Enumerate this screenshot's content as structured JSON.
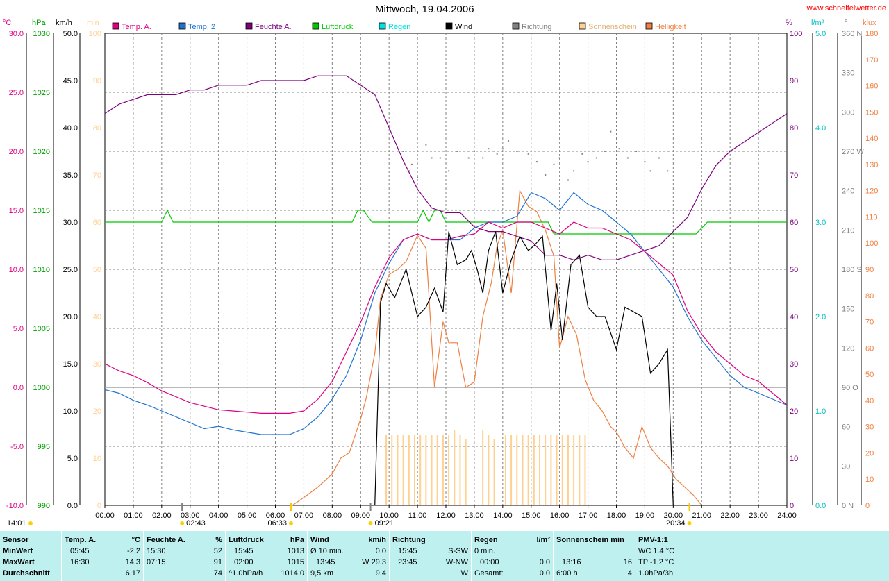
{
  "title": "Mittwoch, 19.04.2006",
  "site": "www.schneifelwetter.de",
  "legend": [
    {
      "name": "Temp. A.",
      "color": "#e0007f"
    },
    {
      "name": "Temp. 2",
      "color": "#1e73d2"
    },
    {
      "name": "Feuchte A.",
      "color": "#800080"
    },
    {
      "name": "Luftdruck",
      "color": "#00c800"
    },
    {
      "name": "Regen",
      "color": "#00e0e0"
    },
    {
      "name": "Wind",
      "color": "#000000"
    },
    {
      "name": "Richtung",
      "color": "#808080"
    },
    {
      "name": "Sonnenschein",
      "color": "#ffd090"
    },
    {
      "name": "Helligkeit",
      "color": "#f08040"
    }
  ],
  "axes": {
    "temp": {
      "unit": "°C",
      "ticks": [
        "30.0",
        "25.0",
        "20.0",
        "15.0",
        "10.0",
        "5.0",
        "0.0",
        "-5.0",
        "-10.0"
      ],
      "color": "#e0007f"
    },
    "hpa": {
      "unit": "hPa",
      "ticks": [
        "1030",
        "1025",
        "1020",
        "1015",
        "1010",
        "1005",
        "1000",
        "995",
        "990"
      ],
      "color": "#00a000"
    },
    "kmh": {
      "unit": "km/h",
      "ticks": [
        "50.0",
        "45.0",
        "40.0",
        "35.0",
        "30.0",
        "25.0",
        "20.0",
        "15.0",
        "10.0",
        "5.0",
        "0.0"
      ],
      "color": "#000000"
    },
    "min": {
      "unit": "min",
      "ticks": [
        "100",
        "90",
        "80",
        "70",
        "60",
        "50",
        "40",
        "30",
        "20",
        "10",
        "0"
      ],
      "color": "#ffd090"
    },
    "pct": {
      "unit": "%",
      "ticks": [
        "100",
        "90",
        "80",
        "70",
        "60",
        "50",
        "40",
        "30",
        "20",
        "10",
        "0"
      ],
      "color": "#800080"
    },
    "lm2": {
      "unit": "l/m²",
      "ticks": [
        "5.0",
        "4.0",
        "3.0",
        "2.0",
        "1.0",
        "0.0"
      ],
      "color": "#00c0c0"
    },
    "deg": {
      "unit": "°",
      "ticks": [
        "360 N",
        "330",
        "300",
        "270 W",
        "240",
        "210",
        "180 S",
        "150",
        "120",
        "90 O",
        "60",
        "30",
        "0 N"
      ],
      "color": "#808080"
    },
    "klux": {
      "unit": "klux",
      "ticks": [
        "180",
        "170",
        "160",
        "150",
        "140",
        "130",
        "120",
        "110",
        "100",
        "90",
        "80",
        "70",
        "60",
        "50",
        "40",
        "30",
        "20",
        "10",
        "0"
      ],
      "color": "#f08040"
    },
    "time": [
      "00:00",
      "01:00",
      "02:00",
      "03:00",
      "04:00",
      "05:00",
      "06:00",
      "07:00",
      "08:00",
      "09:00",
      "10:00",
      "11:00",
      "12:00",
      "13:00",
      "14:00",
      "15:00",
      "16:00",
      "17:00",
      "18:00",
      "19:00",
      "20:00",
      "21:00",
      "22:00",
      "23:00",
      "24:00"
    ]
  },
  "markers": {
    "now": "14:01",
    "moonrise": "02:43",
    "sunrise": "06:33",
    "moonset": "09:21",
    "sunset": "20:34"
  },
  "chart_data": {
    "type": "line",
    "x_unit": "hours",
    "xlim": [
      0,
      24
    ],
    "series": [
      {
        "name": "Temp. A.",
        "axis": "°C",
        "ylim": [
          -10,
          30
        ],
        "x": [
          0,
          0.5,
          1,
          1.5,
          2,
          2.5,
          3,
          3.5,
          4,
          4.5,
          5,
          5.5,
          6,
          6.5,
          7,
          7.5,
          8,
          8.5,
          9,
          9.5,
          10,
          10.5,
          11,
          11.5,
          12,
          12.5,
          13,
          13.5,
          14,
          14.5,
          15,
          15.5,
          16,
          16.5,
          17,
          17.5,
          18,
          18.5,
          19,
          19.5,
          20,
          20.5,
          21,
          21.5,
          22,
          22.5,
          23,
          23.5,
          24
        ],
        "y": [
          2.0,
          1.4,
          1.0,
          0.4,
          -0.3,
          -0.8,
          -1.3,
          -1.6,
          -1.9,
          -2.0,
          -2.1,
          -2.2,
          -2.2,
          -2.2,
          -2.0,
          -1.0,
          0.5,
          3.0,
          5.5,
          8.5,
          11.0,
          12.5,
          13.0,
          12.5,
          12.5,
          12.8,
          13.0,
          14.0,
          13.5,
          14.0,
          14.0,
          13.5,
          13.0,
          14.0,
          13.5,
          13.5,
          13.0,
          12.5,
          11.5,
          10.5,
          9.5,
          6.5,
          4.5,
          3.0,
          2.0,
          1.0,
          0.5,
          -0.5,
          -1.5
        ]
      },
      {
        "name": "Temp. 2",
        "axis": "°C",
        "ylim": [
          -10,
          30
        ],
        "x": [
          0,
          0.5,
          1,
          1.5,
          2,
          2.5,
          3,
          3.5,
          4,
          4.5,
          5,
          5.5,
          6,
          6.5,
          7,
          7.5,
          8,
          8.5,
          9,
          9.5,
          10,
          10.5,
          11,
          11.5,
          12,
          12.5,
          13,
          13.5,
          14,
          14.5,
          15,
          15.5,
          16,
          16.5,
          17,
          17.5,
          18,
          18.5,
          19,
          19.5,
          20,
          20.5,
          21,
          21.5,
          22,
          22.5,
          23,
          23.5,
          24
        ],
        "y": [
          -0.2,
          -0.5,
          -1.1,
          -1.5,
          -2.0,
          -2.5,
          -3.0,
          -3.5,
          -3.3,
          -3.6,
          -3.8,
          -4.0,
          -4.0,
          -4.0,
          -3.5,
          -2.5,
          -1.0,
          1.0,
          4.0,
          8.0,
          10.5,
          12.5,
          13.0,
          12.5,
          12.5,
          12.5,
          13.5,
          14.0,
          14.0,
          14.5,
          16.5,
          16.0,
          15.0,
          16.5,
          15.5,
          15.0,
          14.0,
          13.0,
          11.5,
          10.0,
          8.5,
          6.0,
          4.0,
          2.5,
          1.0,
          0.0,
          -0.5,
          -1.0,
          -1.5
        ]
      },
      {
        "name": "Feuchte A.",
        "axis": "%",
        "ylim": [
          0,
          100
        ],
        "x": [
          0,
          0.5,
          1,
          1.5,
          2,
          2.5,
          3,
          3.5,
          4,
          4.5,
          5,
          5.5,
          6,
          6.5,
          7,
          7.5,
          8,
          8.5,
          9,
          9.5,
          10,
          10.5,
          11,
          11.5,
          12,
          12.5,
          13,
          13.5,
          14,
          14.5,
          15,
          15.5,
          16,
          16.5,
          17,
          17.5,
          18,
          18.5,
          19,
          19.5,
          20,
          20.5,
          21,
          21.5,
          22,
          22.5,
          23,
          23.5,
          24
        ],
        "y": [
          83,
          85,
          86,
          87,
          87,
          87,
          88,
          88,
          89,
          89,
          89,
          90,
          90,
          90,
          90,
          91,
          91,
          91,
          89,
          87,
          80,
          73,
          67,
          63,
          62,
          62,
          59,
          58,
          58,
          57,
          56,
          53,
          53,
          52,
          53,
          52,
          52,
          53,
          54,
          55,
          58,
          61,
          67,
          72,
          75,
          77,
          79,
          81,
          83
        ]
      },
      {
        "name": "Luftdruck",
        "axis": "hPa",
        "ylim": [
          990,
          1030
        ],
        "x": [
          0,
          1,
          2,
          2.2,
          2.4,
          3,
          4,
          5,
          6,
          7,
          8,
          8.7,
          8.9,
          9.1,
          9.4,
          10,
          11,
          11.2,
          11.4,
          11.6,
          11.8,
          12,
          13,
          14,
          15,
          15.6,
          15.8,
          17,
          18,
          19,
          20,
          20.8,
          21.2,
          22,
          23,
          24
        ],
        "y": [
          1014,
          1014,
          1014,
          1015,
          1014,
          1014,
          1014,
          1014,
          1014,
          1014,
          1014,
          1014,
          1015,
          1015,
          1014,
          1014,
          1014,
          1015,
          1014,
          1015,
          1015,
          1014,
          1014,
          1014,
          1014,
          1014,
          1013,
          1013,
          1013,
          1013,
          1013,
          1013,
          1014,
          1014,
          1014,
          1014
        ]
      },
      {
        "name": "Wind",
        "axis": "km/h",
        "ylim": [
          0,
          50
        ],
        "x": [
          9.5,
          9.7,
          9.9,
          10.2,
          10.6,
          11,
          11.3,
          11.6,
          11.9,
          12.1,
          12.4,
          12.7,
          12.9,
          13.1,
          13.3,
          13.5,
          13.75,
          14,
          14.3,
          14.6,
          14.9,
          15.1,
          15.4,
          15.7,
          15.9,
          16.1,
          16.4,
          16.7,
          17,
          17.3,
          17.6,
          18,
          18.3,
          18.6,
          18.9,
          19.2,
          19.5,
          19.8,
          20
        ],
        "y": [
          0,
          21.5,
          23.5,
          22,
          25,
          20,
          21,
          23,
          20.5,
          29,
          25.5,
          26,
          27,
          25,
          22.5,
          27,
          29,
          22.5,
          26,
          28.5,
          27,
          27.5,
          28.5,
          18.5,
          23.5,
          17.5,
          25.5,
          26.5,
          21,
          20,
          20,
          16.5,
          21,
          20.5,
          20,
          14,
          15,
          16.5,
          0
        ]
      },
      {
        "name": "Sonnenschein",
        "axis": "min",
        "x": [
          9.9,
          10.1,
          10.3,
          10.5,
          10.7,
          10.9,
          11.1,
          11.3,
          11.5,
          11.7,
          11.9,
          12.1,
          12.3,
          12.5,
          12.7,
          12.9,
          13.1,
          13.3,
          13.5,
          13.7,
          13.9,
          14.1,
          14.3,
          14.5,
          14.7,
          14.9,
          15.1,
          15.3,
          15.5,
          15.7,
          15.9,
          16.1,
          16.3,
          16.5,
          16.7,
          16.9
        ],
        "y": [
          15,
          15,
          15,
          15,
          15,
          15,
          15,
          15,
          15,
          15,
          15,
          15,
          16,
          15,
          14,
          0,
          0,
          16,
          15,
          14,
          0,
          15,
          15,
          15,
          15,
          15,
          15,
          15,
          15,
          15,
          15,
          15,
          15,
          15,
          15,
          15
        ]
      },
      {
        "name": "Helligkeit",
        "axis": "klux",
        "ylim": [
          0,
          180
        ],
        "x": [
          6.6,
          7,
          7.5,
          8,
          8.3,
          8.6,
          9,
          9.2,
          9.5,
          9.7,
          10,
          10.3,
          10.6,
          11,
          11.3,
          11.6,
          11.9,
          12.1,
          12.4,
          12.7,
          13,
          13.3,
          13.6,
          13.8,
          14,
          14.3,
          14.6,
          14.9,
          15.2,
          15.5,
          15.8,
          16,
          16.3,
          16.6,
          16.9,
          17.2,
          17.5,
          17.8,
          18,
          18.3,
          18.6,
          18.9,
          19.2,
          19.5,
          19.8,
          20.1,
          20.4,
          20.7,
          21
        ],
        "y": [
          0,
          3,
          7,
          12,
          18,
          20,
          33,
          41,
          58,
          79,
          88,
          90,
          93,
          103,
          98,
          45,
          70,
          62,
          62,
          45,
          47,
          72,
          85,
          99,
          105,
          81,
          120,
          114,
          112,
          105,
          95,
          60,
          72,
          65,
          48,
          40,
          36,
          30,
          28,
          22,
          18,
          30,
          22,
          18,
          15,
          10,
          7,
          4,
          0
        ]
      },
      {
        "name": "Richtung",
        "axis": "°",
        "ylim": [
          0,
          360
        ],
        "x": [
          10.5,
          10.7,
          10.8,
          11,
          11.3,
          11.5,
          11.8,
          12.1,
          12.4,
          12.8,
          13,
          13.3,
          13.5,
          13.8,
          14,
          14.2,
          14.5,
          14.9,
          15.2,
          15.5,
          15.8,
          16,
          16.3,
          16.5,
          16.8,
          17,
          17.3,
          17.6,
          17.8,
          18.1,
          18.4,
          18.7,
          19,
          19.2,
          19.5,
          19.8
        ],
        "y": [
          270,
          255,
          260,
          250,
          275,
          265,
          265,
          255,
          270,
          265,
          270,
          265,
          272,
          268,
          272,
          278,
          270,
          268,
          262,
          252,
          260,
          265,
          248,
          255,
          268,
          262,
          265,
          270,
          285,
          272,
          265,
          270,
          262,
          255,
          265,
          255
        ]
      }
    ]
  },
  "panel": {
    "headers": {
      "sensor": "Sensor",
      "minwert": "MinWert",
      "maxwert": "MaxWert",
      "durchschnitt": "Durchschnitt"
    },
    "temp": {
      "title": "Temp. A.",
      "unit": "°C",
      "min_t": "05:45",
      "min_v": "-2.2",
      "max_t": "16:30",
      "max_v": "14.3",
      "avg": "6.17"
    },
    "feuchte": {
      "title": "Feuchte A.",
      "unit": "%",
      "min_t": "15:30",
      "min_v": "52",
      "max_t": "07:15",
      "max_v": "91",
      "avg": "74"
    },
    "luft": {
      "title": "Luftdruck",
      "unit": "hPa",
      "min_t": "15:45",
      "min_v": "1013",
      "max_t": "02:00",
      "max_v": "1015",
      "avg_l": "^1.0hPa/h",
      "avg": "1014.0"
    },
    "wind": {
      "title": "Wind",
      "unit": "km/h",
      "min_t": "Ø 10 min.",
      "min_v": "0.0",
      "max_t": "13:45",
      "max_v": "W 29.3",
      "avg_l": "9,5 km",
      "avg": "9.4"
    },
    "richt": {
      "title": "Richtung",
      "min_t": "15:45",
      "min_v": "S-SW",
      "max_t": "23:45",
      "max_v": "W-NW",
      "avg": "W"
    },
    "regen": {
      "title": "Regen",
      "unit": "l/m²",
      "min_t": "0 min.",
      "max_t": "00:00",
      "max_v": "0.0",
      "avg_l": "Gesamt:",
      "avg": "0.0"
    },
    "sonne": {
      "title": "Sonnenschein min",
      "max_t": "13:16",
      "max_v": "16",
      "avg_l": "6:00 h",
      "avg": "4"
    },
    "pmv": {
      "title": "PMV-1:1",
      "l1": "WC 1.4 °C",
      "l2": "TP -1.2 °C",
      "l3": "1.0hPa/3h"
    }
  }
}
